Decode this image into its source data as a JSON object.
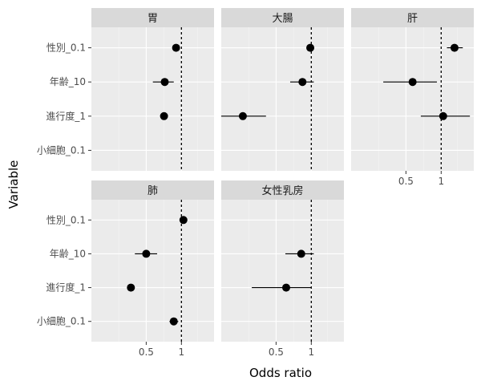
{
  "chart_data": {
    "type": "scatter",
    "subtype": "forest-plot-faceted",
    "xlabel": "Odds ratio",
    "ylabel": "Variable",
    "x_scale": "log",
    "x_ticks": [
      {
        "value": 0.5,
        "label": "0.5"
      },
      {
        "value": 1,
        "label": "1"
      }
    ],
    "reference_line": {
      "x": 1,
      "style": "dotted"
    },
    "grid": true,
    "variables": [
      "性別_0.1",
      "年齢_10",
      "進行度_1",
      "小細胞_0.1"
    ],
    "facets": [
      {
        "name": "胃",
        "xlim": [
          0.17,
          1.9
        ],
        "show_x_axis": false,
        "show_y_axis": true,
        "points": [
          {
            "variable": "性別_0.1",
            "or": 0.9,
            "low": null,
            "high": null
          },
          {
            "variable": "年齢_10",
            "or": 0.72,
            "low": 0.57,
            "high": 0.86
          },
          {
            "variable": "進行度_1",
            "or": 0.71,
            "low": null,
            "high": null
          }
        ]
      },
      {
        "name": "大腸",
        "xlim": [
          0.17,
          1.9
        ],
        "show_x_axis": false,
        "show_y_axis": false,
        "points": [
          {
            "variable": "性別_0.1",
            "or": 0.98,
            "low": 0.92,
            "high": 1.04
          },
          {
            "variable": "年齢_10",
            "or": 0.84,
            "low": 0.66,
            "high": 1.05
          },
          {
            "variable": "進行度_1",
            "or": 0.26,
            "low": 0.17,
            "high": 0.41
          }
        ]
      },
      {
        "name": "肝",
        "xlim": [
          0.17,
          1.9
        ],
        "show_x_axis": true,
        "show_y_axis": false,
        "points": [
          {
            "variable": "性別_0.1",
            "or": 1.3,
            "low": 1.12,
            "high": 1.53
          },
          {
            "variable": "年齢_10",
            "or": 0.57,
            "low": 0.32,
            "high": 0.92
          },
          {
            "variable": "進行度_1",
            "or": 1.04,
            "low": 0.67,
            "high": 1.76
          }
        ]
      },
      {
        "name": "肺",
        "xlim": [
          0.17,
          1.9
        ],
        "show_x_axis": true,
        "show_y_axis": true,
        "points": [
          {
            "variable": "性別_0.1",
            "or": 1.04,
            "low": null,
            "high": null
          },
          {
            "variable": "年齢_10",
            "or": 0.5,
            "low": 0.4,
            "high": 0.62
          },
          {
            "variable": "進行度_1",
            "or": 0.37,
            "low": null,
            "high": null
          },
          {
            "variable": "小細胞_0.1",
            "or": 0.86,
            "low": 0.79,
            "high": 0.94
          }
        ]
      },
      {
        "name": "女性乳房",
        "xlim": [
          0.17,
          1.9
        ],
        "show_x_axis": true,
        "show_y_axis": false,
        "points": [
          {
            "variable": "年齢_10",
            "or": 0.82,
            "low": 0.6,
            "high": 1.05
          },
          {
            "variable": "進行度_1",
            "or": 0.61,
            "low": 0.31,
            "high": 1.0
          }
        ]
      }
    ]
  }
}
